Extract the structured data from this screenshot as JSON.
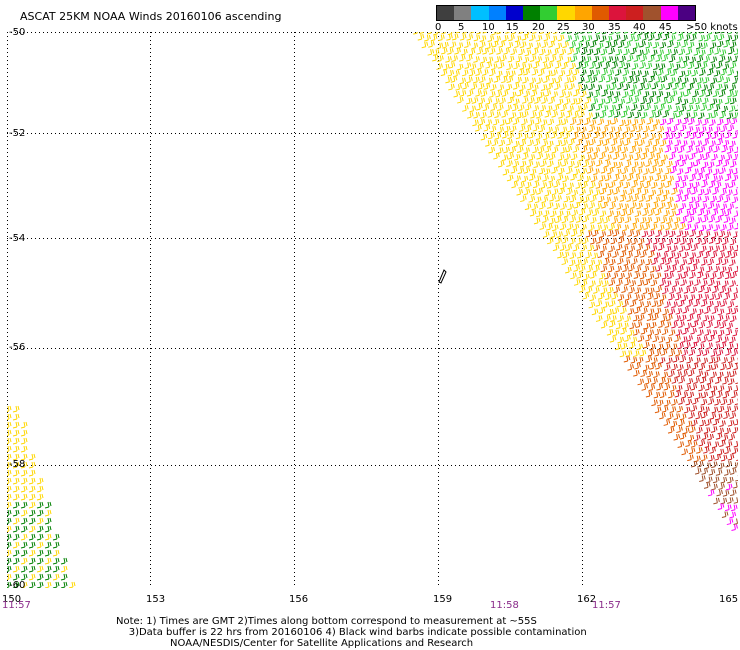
{
  "title": "ASCAT 25KM NOAA Winds 20160106 ascending",
  "colorbar": {
    "colors": [
      "#3f3f3f",
      "#808080",
      "#00bfff",
      "#0080ff",
      "#0000cd",
      "#008000",
      "#32cd32",
      "#ffd700",
      "#ffa500",
      "#e05a00",
      "#dc143c",
      "#cd1f1f",
      "#a0522d",
      "#ff00ff",
      "#4b0082"
    ],
    "labels": [
      "0",
      "5",
      "10",
      "15",
      "20",
      "25",
      "30",
      "35",
      "40",
      "45",
      ">50 knots"
    ]
  },
  "map": {
    "lat_labels": [
      "-50",
      "-52",
      "-54",
      "-56",
      "-58",
      "-60"
    ],
    "lon_labels": [
      "150",
      "153",
      "156",
      "159",
      "162",
      "165"
    ],
    "time_labels": [
      "11:57",
      "11:58",
      "11:57"
    ],
    "lat_range": [
      -60,
      -50
    ],
    "lon_range": [
      150,
      165
    ],
    "grid": true
  },
  "note": {
    "line1": "Note: 1) Times are GMT 2)Times along bottom correspond to measurement at ~55S",
    "line2": "3)Data buffer is 22 hrs from 20160106 4) Black wind barbs indicate possible contamination",
    "line3": "NOAA/NESDIS/Center for Satellite Applications and Research"
  }
}
